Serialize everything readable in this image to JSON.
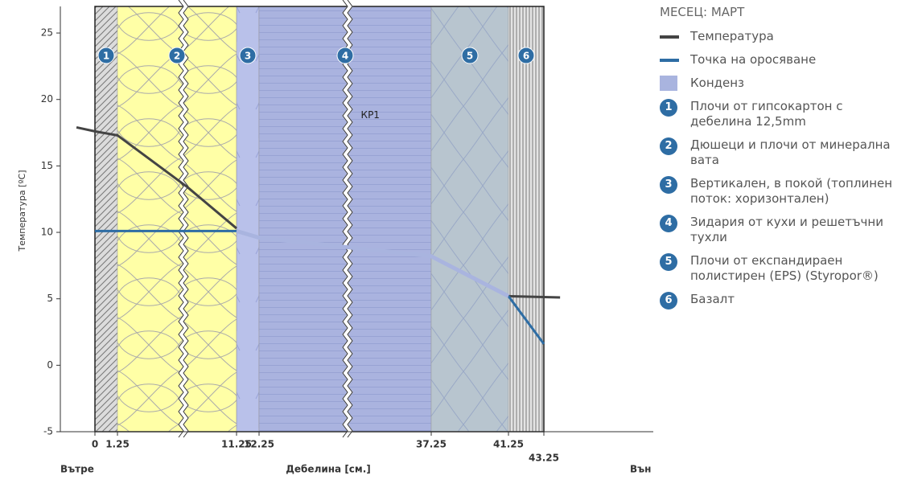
{
  "chart_data": {
    "type": "line",
    "title": "МЕСЕЦ: МАРТ",
    "xlabel": "Дебелина [см.]",
    "ylabel": "Температура [ºC]",
    "inside_label": "Вътре",
    "outside_label": "Вън",
    "xlim": [
      -1.5,
      50
    ],
    "xticks": [
      0,
      1.25,
      11.25,
      12.25,
      37.25,
      41.25,
      43.25
    ],
    "ylim": [
      -5,
      27
    ],
    "yticks": [
      -5,
      0,
      5,
      10,
      15,
      20,
      25
    ],
    "series": [
      {
        "name": "Температура",
        "color": "#444444",
        "line_width": 3,
        "x": [
          -0.8,
          0,
          1.25,
          7.13,
          11.25,
          12.25,
          41.25,
          44.25
        ],
        "values": [
          17.9,
          17.6,
          17.3,
          13.4,
          10.3,
          null,
          5.2,
          5.1
        ]
      },
      {
        "name": "Точка на оросяване",
        "color": "#2e6da4",
        "line_width": 3,
        "x": [
          0,
          11.25,
          12.25,
          41.25,
          43.25
        ],
        "values": [
          10.1,
          10.1,
          null,
          5.2,
          1.6
        ]
      },
      {
        "name": "Конденз",
        "color": "#a9b4df",
        "line_width": 5,
        "x": [
          11.25,
          12.25,
          37.25,
          41.25
        ],
        "values": [
          10.1,
          9.6,
          8.2,
          5.2
        ]
      }
    ],
    "layers": [
      {
        "number": 1,
        "name": "Плочи от гипсокартон с дебелина 12,5mm",
        "color": "#dcdcdc"
      },
      {
        "number": 2,
        "name": "Дюшеци и плочи от минерална вата",
        "color": "#ffffa6"
      },
      {
        "number": 3,
        "name": "Вертикален, в покой (топлинен поток: хоризонтален)",
        "color": "#b9c1ea"
      },
      {
        "number": 4,
        "name": "Зидария от кухи и решетъчни тухли",
        "color": "#aab3df"
      },
      {
        "number": 5,
        "name": "Плочи от експандираен полистирен (EPS) (Styropor®)",
        "color": "#b8c5cf"
      },
      {
        "number": 6,
        "name": "Базалт",
        "color": "#e4e4e4"
      }
    ],
    "annotations": [
      {
        "text": "КР1",
        "x": 28.4,
        "y": 18.8
      }
    ]
  }
}
